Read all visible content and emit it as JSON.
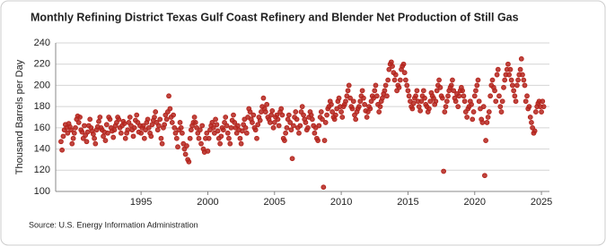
{
  "chart_data": {
    "type": "scatter",
    "title": "Monthly Refining District Texas Gulf Coast Refinery and Blender Net Production of Still Gas",
    "ylabel": "Thousand Barrels per Day",
    "source": "Source: U.S. Energy Information Administration",
    "color": "#b5261e",
    "xlim": [
      1988.6,
      2025.6
    ],
    "xticks": [
      1995,
      2000,
      2005,
      2010,
      2015,
      2020,
      2025
    ],
    "ylim": [
      100,
      240
    ],
    "yticks": [
      100,
      120,
      140,
      160,
      180,
      200,
      220,
      240
    ],
    "grid": true,
    "x": [
      1989.0,
      1989.08,
      1989.17,
      1989.25,
      1989.33,
      1989.42,
      1989.5,
      1989.58,
      1989.67,
      1989.75,
      1989.83,
      1989.92,
      1990.0,
      1990.08,
      1990.17,
      1990.25,
      1990.33,
      1990.42,
      1990.5,
      1990.58,
      1990.67,
      1990.75,
      1990.83,
      1990.92,
      1991.0,
      1991.08,
      1991.17,
      1991.25,
      1991.33,
      1991.42,
      1991.5,
      1991.58,
      1991.67,
      1991.75,
      1991.83,
      1991.92,
      1992.0,
      1992.08,
      1992.17,
      1992.25,
      1992.33,
      1992.42,
      1992.5,
      1992.58,
      1992.67,
      1992.75,
      1992.83,
      1992.92,
      1993.0,
      1993.08,
      1993.17,
      1993.25,
      1993.33,
      1993.42,
      1993.5,
      1993.58,
      1993.67,
      1993.75,
      1993.83,
      1993.92,
      1994.0,
      1994.08,
      1994.17,
      1994.25,
      1994.33,
      1994.42,
      1994.5,
      1994.58,
      1994.67,
      1994.75,
      1994.83,
      1994.92,
      1995.0,
      1995.08,
      1995.17,
      1995.25,
      1995.33,
      1995.42,
      1995.5,
      1995.58,
      1995.67,
      1995.75,
      1995.83,
      1995.92,
      1996.0,
      1996.08,
      1996.17,
      1996.25,
      1996.33,
      1996.42,
      1996.5,
      1996.58,
      1996.67,
      1996.75,
      1996.83,
      1996.92,
      1997.0,
      1997.08,
      1997.17,
      1997.25,
      1997.33,
      1997.42,
      1997.5,
      1997.58,
      1997.67,
      1997.75,
      1997.83,
      1997.92,
      1998.0,
      1998.08,
      1998.17,
      1998.25,
      1998.33,
      1998.42,
      1998.5,
      1998.58,
      1998.67,
      1998.75,
      1998.83,
      1998.92,
      1999.0,
      1999.08,
      1999.17,
      1999.25,
      1999.33,
      1999.42,
      1999.5,
      1999.58,
      1999.67,
      1999.75,
      1999.83,
      1999.92,
      2000.0,
      2000.08,
      2000.17,
      2000.25,
      2000.33,
      2000.42,
      2000.5,
      2000.58,
      2000.67,
      2000.75,
      2000.83,
      2000.92,
      2001.0,
      2001.08,
      2001.17,
      2001.25,
      2001.33,
      2001.42,
      2001.5,
      2001.58,
      2001.67,
      2001.75,
      2001.83,
      2001.92,
      2002.0,
      2002.08,
      2002.17,
      2002.25,
      2002.33,
      2002.42,
      2002.5,
      2002.58,
      2002.67,
      2002.75,
      2002.83,
      2002.92,
      2003.0,
      2003.08,
      2003.17,
      2003.25,
      2003.33,
      2003.42,
      2003.5,
      2003.58,
      2003.67,
      2003.75,
      2003.83,
      2003.92,
      2004.0,
      2004.08,
      2004.17,
      2004.25,
      2004.33,
      2004.42,
      2004.5,
      2004.58,
      2004.67,
      2004.75,
      2004.83,
      2004.92,
      2005.0,
      2005.08,
      2005.17,
      2005.25,
      2005.33,
      2005.42,
      2005.5,
      2005.58,
      2005.67,
      2005.75,
      2005.83,
      2005.92,
      2006.0,
      2006.08,
      2006.17,
      2006.25,
      2006.33,
      2006.42,
      2006.5,
      2006.58,
      2006.67,
      2006.75,
      2006.83,
      2006.92,
      2007.0,
      2007.08,
      2007.17,
      2007.25,
      2007.33,
      2007.42,
      2007.5,
      2007.58,
      2007.67,
      2007.75,
      2007.83,
      2007.92,
      2008.0,
      2008.08,
      2008.17,
      2008.25,
      2008.33,
      2008.42,
      2008.5,
      2008.58,
      2008.67,
      2008.75,
      2008.83,
      2008.92,
      2009.0,
      2009.08,
      2009.17,
      2009.25,
      2009.33,
      2009.42,
      2009.5,
      2009.58,
      2009.67,
      2009.75,
      2009.83,
      2009.92,
      2010.0,
      2010.08,
      2010.17,
      2010.25,
      2010.33,
      2010.42,
      2010.5,
      2010.58,
      2010.67,
      2010.75,
      2010.83,
      2010.92,
      2011.0,
      2011.08,
      2011.17,
      2011.25,
      2011.33,
      2011.42,
      2011.5,
      2011.58,
      2011.67,
      2011.75,
      2011.83,
      2011.92,
      2012.0,
      2012.08,
      2012.17,
      2012.25,
      2012.33,
      2012.42,
      2012.5,
      2012.58,
      2012.67,
      2012.75,
      2012.83,
      2012.92,
      2013.0,
      2013.08,
      2013.17,
      2013.25,
      2013.33,
      2013.42,
      2013.5,
      2013.58,
      2013.67,
      2013.75,
      2013.83,
      2013.92,
      2014.0,
      2014.08,
      2014.17,
      2014.25,
      2014.33,
      2014.42,
      2014.5,
      2014.58,
      2014.67,
      2014.75,
      2014.83,
      2014.92,
      2015.0,
      2015.08,
      2015.17,
      2015.25,
      2015.33,
      2015.42,
      2015.5,
      2015.58,
      2015.67,
      2015.75,
      2015.83,
      2015.92,
      2016.0,
      2016.08,
      2016.17,
      2016.25,
      2016.33,
      2016.42,
      2016.5,
      2016.58,
      2016.67,
      2016.75,
      2016.83,
      2016.92,
      2017.0,
      2017.08,
      2017.17,
      2017.25,
      2017.33,
      2017.42,
      2017.5,
      2017.58,
      2017.67,
      2017.75,
      2017.83,
      2017.92,
      2018.0,
      2018.08,
      2018.17,
      2018.25,
      2018.33,
      2018.42,
      2018.5,
      2018.58,
      2018.67,
      2018.75,
      2018.83,
      2018.92,
      2019.0,
      2019.08,
      2019.17,
      2019.25,
      2019.33,
      2019.42,
      2019.5,
      2019.58,
      2019.67,
      2019.75,
      2019.83,
      2019.92,
      2020.0,
      2020.08,
      2020.17,
      2020.25,
      2020.33,
      2020.42,
      2020.5,
      2020.58,
      2020.67,
      2020.75,
      2020.83,
      2020.92,
      2021.0,
      2021.08,
      2021.17,
      2021.25,
      2021.33,
      2021.42,
      2021.5,
      2021.58,
      2021.67,
      2021.75,
      2021.83,
      2021.92,
      2022.0,
      2022.08,
      2022.17,
      2022.25,
      2022.33,
      2022.42,
      2022.5,
      2022.58,
      2022.67,
      2022.75,
      2022.83,
      2022.92,
      2023.0,
      2023.08,
      2023.17,
      2023.25,
      2023.33,
      2023.42,
      2023.5,
      2023.58,
      2023.67,
      2023.75,
      2023.83,
      2023.92,
      2024.0,
      2024.08,
      2024.17,
      2024.25,
      2024.33,
      2024.42,
      2024.5,
      2024.58,
      2024.67,
      2024.75,
      2024.83,
      2024.92,
      2025.0,
      2025.08,
      2025.17
    ],
    "values": [
      147,
      139,
      152,
      158,
      163,
      160,
      155,
      164,
      161,
      158,
      145,
      150,
      155,
      160,
      168,
      171,
      165,
      170,
      158,
      156,
      150,
      162,
      153,
      147,
      156,
      162,
      168,
      160,
      157,
      154,
      150,
      145,
      158,
      161,
      166,
      170,
      160,
      158,
      152,
      156,
      148,
      163,
      155,
      170,
      168,
      160,
      157,
      151,
      158,
      162,
      165,
      170,
      168,
      160,
      155,
      162,
      166,
      164,
      150,
      155,
      158,
      165,
      170,
      162,
      158,
      152,
      160,
      167,
      172,
      165,
      156,
      162,
      155,
      160,
      162,
      150,
      158,
      165,
      168,
      160,
      155,
      152,
      163,
      167,
      170,
      175,
      165,
      158,
      162,
      168,
      150,
      145,
      160,
      163,
      172,
      168,
      175,
      190,
      178,
      170,
      165,
      172,
      160,
      155,
      150,
      142,
      158,
      165,
      160,
      155,
      145,
      140,
      135,
      143,
      130,
      128,
      150,
      158,
      162,
      165,
      170,
      165,
      160,
      155,
      150,
      158,
      145,
      162,
      140,
      137,
      150,
      155,
      138,
      150,
      158,
      162,
      165,
      160,
      155,
      168,
      163,
      157,
      150,
      145,
      152,
      160,
      158,
      165,
      170,
      162,
      155,
      150,
      145,
      160,
      167,
      172,
      165,
      160,
      155,
      162,
      158,
      150,
      145,
      157,
      163,
      168,
      160,
      155,
      170,
      178,
      175,
      168,
      165,
      172,
      160,
      158,
      150,
      163,
      170,
      167,
      175,
      180,
      188,
      178,
      175,
      182,
      170,
      168,
      165,
      172,
      176,
      160,
      165,
      170,
      172,
      168,
      162,
      175,
      178,
      172,
      150,
      148,
      155,
      160,
      168,
      172,
      165,
      158,
      131,
      162,
      170,
      175,
      168,
      160,
      155,
      162,
      175,
      180,
      172,
      168,
      165,
      158,
      160,
      170,
      175,
      172,
      168,
      162,
      155,
      160,
      150,
      148,
      162,
      170,
      175,
      168,
      104,
      148,
      165,
      172,
      178,
      180,
      185,
      182,
      175,
      170,
      168,
      172,
      178,
      185,
      188,
      180,
      175,
      170,
      180,
      182,
      185,
      190,
      195,
      200,
      188,
      180,
      178,
      185,
      172,
      168,
      175,
      178,
      180,
      185,
      190,
      195,
      188,
      182,
      176,
      170,
      175,
      180,
      178,
      185,
      190,
      188,
      195,
      200,
      190,
      182,
      175,
      180,
      185,
      188,
      192,
      195,
      200,
      190,
      205,
      215,
      220,
      222,
      218,
      212,
      205,
      210,
      195,
      200,
      198,
      205,
      215,
      218,
      220,
      212,
      205,
      200,
      195,
      190,
      185,
      180,
      178,
      183,
      188,
      190,
      195,
      185,
      180,
      176,
      185,
      190,
      195,
      188,
      182,
      180,
      175,
      178,
      185,
      193,
      190,
      188,
      182,
      185,
      195,
      200,
      205,
      198,
      190,
      188,
      119,
      175,
      180,
      185,
      190,
      195,
      198,
      200,
      205,
      195,
      188,
      185,
      192,
      180,
      190,
      195,
      198,
      195,
      190,
      185,
      175,
      170,
      178,
      180,
      185,
      182,
      168,
      175,
      190,
      195,
      200,
      205,
      185,
      178,
      168,
      165,
      180,
      115,
      148,
      165,
      170,
      175,
      190,
      200,
      205,
      198,
      195,
      185,
      210,
      215,
      190,
      180,
      175,
      185,
      198,
      205,
      210,
      215,
      220,
      210,
      215,
      205,
      200,
      195,
      190,
      185,
      200,
      205,
      210,
      215,
      225,
      210,
      205,
      200,
      185,
      190,
      178,
      180,
      170,
      165,
      160,
      155,
      157,
      175,
      180,
      183,
      185,
      180,
      175,
      185,
      180
    ]
  }
}
